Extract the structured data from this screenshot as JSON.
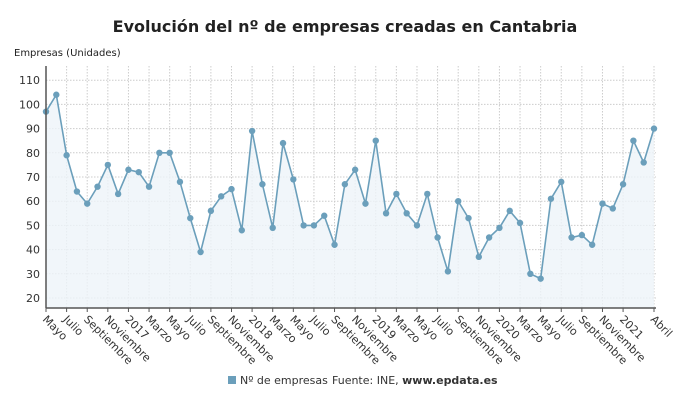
{
  "chart_data": {
    "type": "line",
    "title": "Evolución del nº de empresas creadas en Cantabria",
    "ylabel": "Empresas (Unidades)",
    "ylim": [
      16,
      116
    ],
    "yticks": [
      20,
      30,
      40,
      50,
      60,
      70,
      80,
      90,
      100,
      110
    ],
    "grid": true,
    "x_tick_labels": [
      "Mayo",
      "Julio",
      "Septiembre",
      "Noviembre",
      "2017",
      "Marzo",
      "Mayo",
      "Julio",
      "Septiembre",
      "Noviembre",
      "2018",
      "Marzo",
      "Mayo",
      "Julio",
      "Septiembre",
      "Noviembre",
      "2019",
      "Marzo",
      "Mayo",
      "Julio",
      "Septiembre",
      "Noviembre",
      "2020",
      "Marzo",
      "Mayo",
      "Julio",
      "Septiembre",
      "Noviembre",
      "2021",
      "Abril"
    ],
    "x_range": [
      "2016-05",
      "2021-04"
    ],
    "series": [
      {
        "name": "Nº de empresas",
        "color": "#6b9fbb",
        "values": [
          97,
          104,
          79,
          64,
          59,
          66,
          75,
          63,
          73,
          72,
          66,
          80,
          80,
          68,
          53,
          39,
          56,
          62,
          65,
          48,
          89,
          67,
          49,
          84,
          69,
          50,
          50,
          54,
          42,
          67,
          73,
          59,
          85,
          55,
          63,
          55,
          50,
          63,
          45,
          31,
          60,
          53,
          37,
          45,
          49,
          56,
          51,
          30,
          28,
          61,
          68,
          45,
          46,
          42,
          59,
          57,
          67,
          85,
          76,
          90
        ]
      }
    ],
    "legend": "bottom-center",
    "source_prefix": "Fuente: INE, ",
    "source_site": "www.epdata.es"
  }
}
